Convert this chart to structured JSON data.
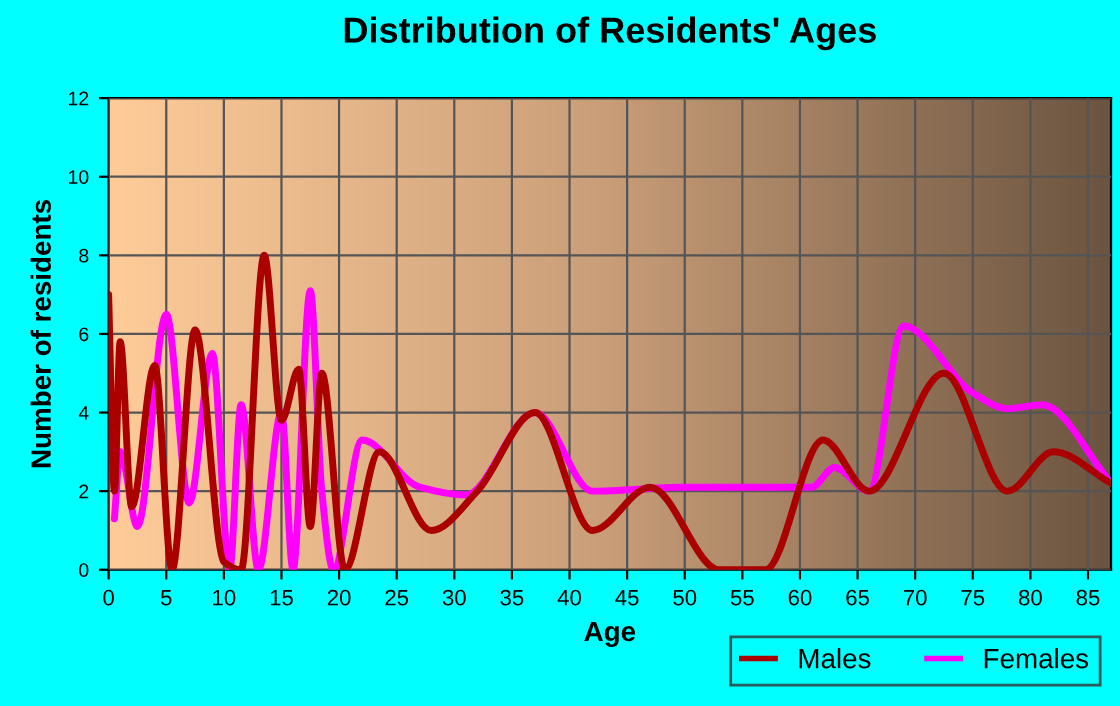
{
  "chart_data": {
    "type": "line",
    "title": "Distribution of Residents' Ages",
    "xlabel": "Age",
    "ylabel": "Number of residents",
    "xlim": [
      0,
      87
    ],
    "xticks": [
      0,
      5,
      10,
      15,
      20,
      25,
      30,
      35,
      40,
      45,
      50,
      55,
      60,
      65,
      70,
      75,
      80,
      85
    ],
    "ylim": [
      0,
      12
    ],
    "yticks": [
      0,
      2,
      4,
      6,
      8,
      10,
      12
    ],
    "grid": true,
    "legend": "bottom right",
    "line_style": "solid",
    "marker": "none",
    "series": [
      {
        "name": "Males",
        "color": "#aa0000",
        "x": [
          0,
          0.5,
          1,
          2,
          4,
          5.5,
          7.5,
          10,
          11.5,
          13.5,
          15,
          16.5,
          17.5,
          18.5,
          20.5,
          23.5,
          28,
          32,
          37,
          42,
          47,
          53,
          57,
          62,
          66,
          72.5,
          78,
          82,
          87
        ],
        "values": [
          7,
          2,
          5.8,
          1.6,
          5.2,
          0,
          6.1,
          0.2,
          0,
          8,
          3.8,
          5.1,
          1.1,
          5,
          0,
          3,
          1,
          2,
          4,
          1,
          2.1,
          0,
          0,
          3.3,
          2,
          5,
          2,
          3,
          2.2
        ]
      },
      {
        "name": "Females",
        "color": "#ff00ff",
        "x": [
          0.5,
          1,
          2.5,
          5,
          7,
          9,
          10.5,
          11.5,
          13,
          15,
          16,
          17.5,
          18.5,
          19.5,
          22,
          27,
          31,
          37,
          42,
          50,
          61,
          63,
          66,
          69,
          75,
          78,
          81,
          87
        ],
        "values": [
          1.3,
          3,
          1.1,
          6.5,
          1.7,
          5.5,
          0,
          4.2,
          0,
          4,
          0,
          7.1,
          2,
          0,
          3.3,
          2.1,
          1.9,
          4,
          2,
          2.1,
          2.1,
          2.6,
          2,
          6.2,
          4.5,
          4.1,
          4.2,
          2.2
        ]
      }
    ]
  }
}
